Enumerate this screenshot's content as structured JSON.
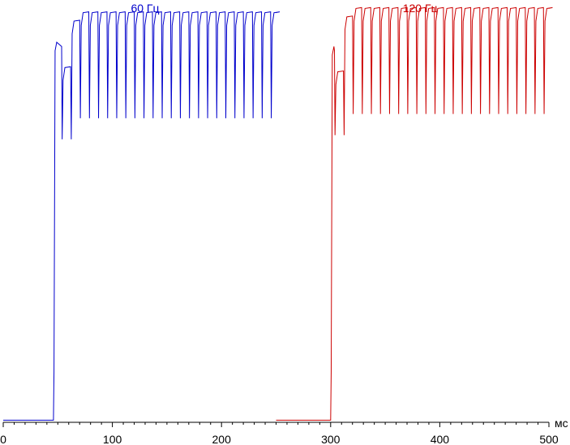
{
  "chart_data": {
    "type": "line",
    "title": "",
    "xlabel": "мс",
    "ylabel": "",
    "xlim": [
      0,
      500
    ],
    "ylim": [
      0,
      1
    ],
    "x_ticks": [
      0,
      100,
      200,
      300,
      400,
      500
    ],
    "x_tick_labels": [
      "0",
      "100",
      "200",
      "300",
      "400",
      "500"
    ],
    "grid": false,
    "series": [
      {
        "name": "60 Гц",
        "color": "#0000cc",
        "rise_ms": 46,
        "pre_level": 0.005,
        "first_level": 0.9,
        "plateau_level": 0.97,
        "pulse_low": 0.72,
        "pulse_period_ms": 8.33,
        "first_pulse_ms": 54,
        "end_ms": 250
      },
      {
        "name": "120 Гц",
        "color": "#cc0000",
        "rise_ms": 300,
        "pre_level": 0.005,
        "first_level": 0.89,
        "plateau_level": 0.98,
        "pulse_low": 0.73,
        "pulse_period_ms": 8.33,
        "first_pulse_ms": 304,
        "end_ms": 500
      }
    ]
  }
}
